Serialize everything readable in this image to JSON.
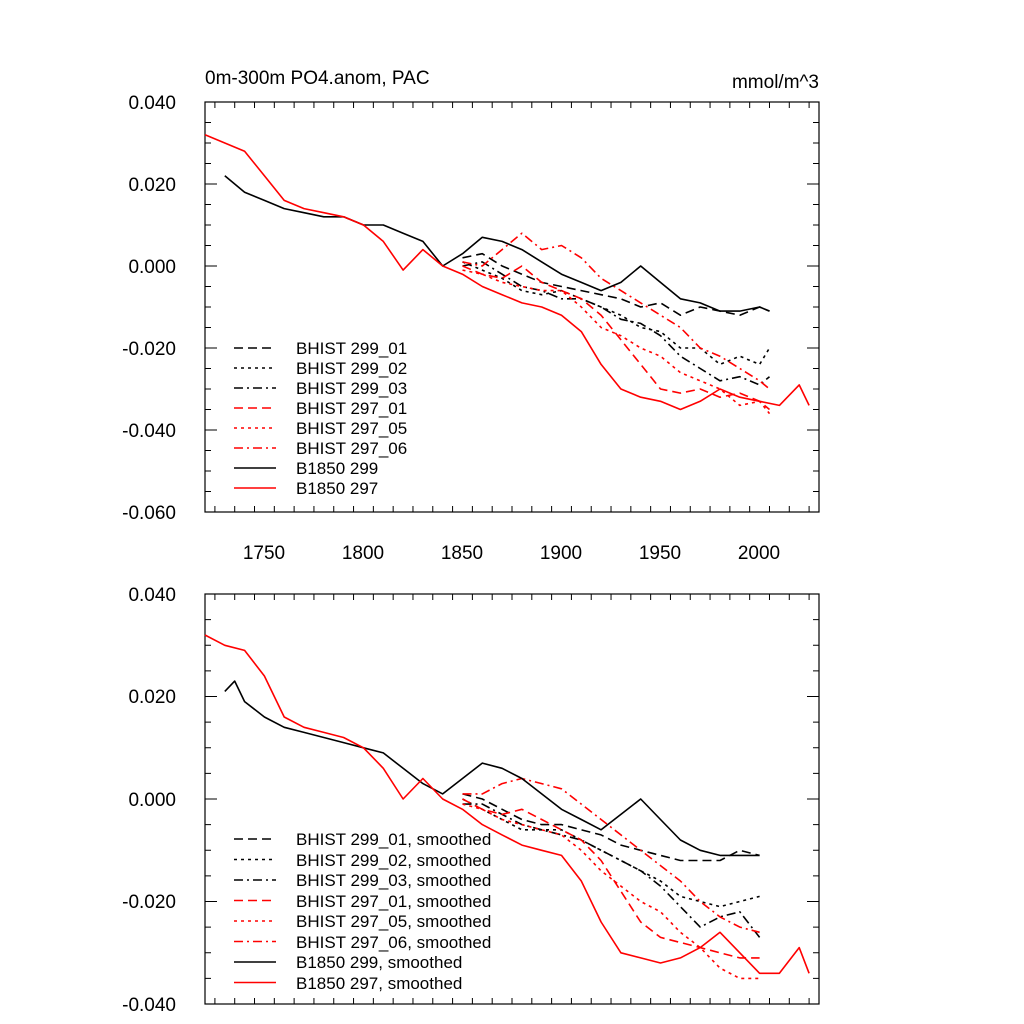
{
  "chart_data": [
    {
      "type": "line",
      "title": "0m-300m PO4.anom, PAC",
      "units": "mmol/m^3",
      "xlim": [
        1720,
        2030
      ],
      "ylim": [
        -0.06,
        0.04
      ],
      "xticks": [
        "1750",
        "1800",
        "1850",
        "1900",
        "1950",
        "2000"
      ],
      "yticks": [
        "0.040",
        "0.020",
        "0.000",
        "-0.020",
        "-0.040",
        "-0.060"
      ],
      "grid": false,
      "legend_position": "bottom-left",
      "series": [
        {
          "name": "BHIST 299_01",
          "color": "#000000",
          "dash": "dashed",
          "x": [
            1850,
            1860,
            1870,
            1880,
            1890,
            1900,
            1910,
            1920,
            1930,
            1940,
            1950,
            1960,
            1970,
            1980,
            1990,
            2000,
            2005
          ],
          "y": [
            0.002,
            0.003,
            0.0,
            -0.002,
            -0.004,
            -0.005,
            -0.006,
            -0.007,
            -0.008,
            -0.01,
            -0.009,
            -0.012,
            -0.01,
            -0.011,
            -0.012,
            -0.01,
            -0.011
          ]
        },
        {
          "name": "BHIST 299_02",
          "color": "#000000",
          "dash": "dotted",
          "x": [
            1850,
            1860,
            1870,
            1880,
            1890,
            1900,
            1910,
            1920,
            1930,
            1940,
            1950,
            1960,
            1970,
            1980,
            1990,
            2000,
            2005
          ],
          "y": [
            0.001,
            -0.001,
            -0.003,
            -0.006,
            -0.007,
            -0.006,
            -0.008,
            -0.01,
            -0.012,
            -0.015,
            -0.016,
            -0.02,
            -0.02,
            -0.024,
            -0.022,
            -0.024,
            -0.02
          ]
        },
        {
          "name": "BHIST 299_03",
          "color": "#000000",
          "dash": "dashdot",
          "x": [
            1850,
            1860,
            1870,
            1880,
            1890,
            1900,
            1910,
            1920,
            1930,
            1940,
            1950,
            1960,
            1970,
            1980,
            1990,
            2000,
            2005
          ],
          "y": [
            0.0,
            0.001,
            -0.002,
            -0.005,
            -0.006,
            -0.008,
            -0.008,
            -0.01,
            -0.013,
            -0.014,
            -0.017,
            -0.022,
            -0.025,
            -0.028,
            -0.027,
            -0.029,
            -0.027
          ]
        },
        {
          "name": "BHIST 297_01",
          "color": "#ff0000",
          "dash": "dashed",
          "x": [
            1850,
            1860,
            1870,
            1880,
            1890,
            1900,
            1910,
            1920,
            1930,
            1940,
            1950,
            1960,
            1970,
            1980,
            1990,
            2000,
            2005
          ],
          "y": [
            0.0,
            -0.002,
            -0.003,
            0.0,
            -0.004,
            -0.006,
            -0.008,
            -0.012,
            -0.018,
            -0.024,
            -0.03,
            -0.031,
            -0.03,
            -0.032,
            -0.031,
            -0.033,
            -0.035
          ]
        },
        {
          "name": "BHIST 297_05",
          "color": "#ff0000",
          "dash": "dotted",
          "x": [
            1850,
            1860,
            1870,
            1880,
            1890,
            1900,
            1910,
            1920,
            1930,
            1940,
            1950,
            1960,
            1970,
            1980,
            1990,
            2000,
            2005
          ],
          "y": [
            -0.001,
            -0.002,
            -0.004,
            -0.005,
            -0.006,
            -0.006,
            -0.01,
            -0.015,
            -0.017,
            -0.02,
            -0.022,
            -0.026,
            -0.028,
            -0.03,
            -0.034,
            -0.033,
            -0.036
          ]
        },
        {
          "name": "BHIST 297_06",
          "color": "#ff0000",
          "dash": "dashdot",
          "x": [
            1850,
            1860,
            1870,
            1880,
            1890,
            1900,
            1910,
            1920,
            1930,
            1940,
            1950,
            1960,
            1970,
            1980,
            1990,
            2000,
            2005
          ],
          "y": [
            0.001,
            0.0,
            0.004,
            0.008,
            0.004,
            0.005,
            0.002,
            -0.003,
            -0.006,
            -0.009,
            -0.012,
            -0.015,
            -0.02,
            -0.022,
            -0.025,
            -0.028,
            -0.03
          ]
        },
        {
          "name": "B1850 299",
          "color": "#000000",
          "dash": "solid",
          "x": [
            1730,
            1740,
            1750,
            1760,
            1770,
            1780,
            1790,
            1800,
            1810,
            1820,
            1830,
            1840,
            1850,
            1860,
            1870,
            1880,
            1890,
            1900,
            1910,
            1920,
            1930,
            1940,
            1950,
            1960,
            1970,
            1980,
            1990,
            2000,
            2005
          ],
          "y": [
            0.022,
            0.018,
            0.016,
            0.014,
            0.013,
            0.012,
            0.012,
            0.01,
            0.01,
            0.008,
            0.006,
            0.0,
            0.003,
            0.007,
            0.006,
            0.004,
            0.001,
            -0.002,
            -0.004,
            -0.006,
            -0.004,
            0.0,
            -0.004,
            -0.008,
            -0.009,
            -0.011,
            -0.011,
            -0.01,
            -0.011
          ]
        },
        {
          "name": "B1850 297",
          "color": "#ff0000",
          "dash": "solid",
          "x": [
            1720,
            1730,
            1740,
            1750,
            1760,
            1770,
            1780,
            1790,
            1800,
            1810,
            1820,
            1830,
            1840,
            1850,
            1860,
            1870,
            1880,
            1890,
            1900,
            1910,
            1920,
            1930,
            1940,
            1950,
            1960,
            1970,
            1980,
            1990,
            2000,
            2010,
            2020,
            2025
          ],
          "y": [
            0.032,
            0.03,
            0.028,
            0.022,
            0.016,
            0.014,
            0.013,
            0.012,
            0.01,
            0.006,
            -0.001,
            0.004,
            0.0,
            -0.002,
            -0.005,
            -0.007,
            -0.009,
            -0.01,
            -0.012,
            -0.016,
            -0.024,
            -0.03,
            -0.032,
            -0.033,
            -0.035,
            -0.033,
            -0.03,
            -0.032,
            -0.033,
            -0.034,
            -0.029,
            -0.034
          ]
        }
      ]
    },
    {
      "type": "line",
      "title": "",
      "xlim": [
        1720,
        2030
      ],
      "ylim": [
        -0.04,
        0.04
      ],
      "yticks": [
        "0.040",
        "0.020",
        "0.000",
        "-0.020",
        "-0.040"
      ],
      "grid": false,
      "legend_position": "bottom-left",
      "series": [
        {
          "name": "BHIST 299_01, smoothed",
          "color": "#000000",
          "dash": "dashed",
          "x": [
            1850,
            1860,
            1870,
            1880,
            1890,
            1900,
            1910,
            1920,
            1930,
            1940,
            1950,
            1960,
            1970,
            1980,
            1990,
            2000
          ],
          "y": [
            0.001,
            0.0,
            -0.002,
            -0.004,
            -0.005,
            -0.005,
            -0.006,
            -0.007,
            -0.009,
            -0.01,
            -0.011,
            -0.012,
            -0.012,
            -0.012,
            -0.01,
            -0.011
          ]
        },
        {
          "name": "BHIST 299_02, smoothed",
          "color": "#000000",
          "dash": "dotted",
          "x": [
            1850,
            1860,
            1870,
            1880,
            1890,
            1900,
            1910,
            1920,
            1930,
            1940,
            1950,
            1960,
            1970,
            1980,
            1990,
            2000
          ],
          "y": [
            0.0,
            -0.002,
            -0.004,
            -0.006,
            -0.006,
            -0.006,
            -0.008,
            -0.01,
            -0.012,
            -0.014,
            -0.016,
            -0.019,
            -0.02,
            -0.021,
            -0.02,
            -0.019
          ]
        },
        {
          "name": "BHIST 299_03, smoothed",
          "color": "#000000",
          "dash": "dashdot",
          "x": [
            1850,
            1860,
            1870,
            1880,
            1890,
            1900,
            1910,
            1920,
            1930,
            1940,
            1950,
            1960,
            1970,
            1980,
            1990,
            2000
          ],
          "y": [
            -0.001,
            -0.001,
            -0.003,
            -0.005,
            -0.006,
            -0.007,
            -0.008,
            -0.01,
            -0.012,
            -0.014,
            -0.017,
            -0.021,
            -0.025,
            -0.023,
            -0.022,
            -0.027
          ]
        },
        {
          "name": "BHIST 297_01, smoothed",
          "color": "#ff0000",
          "dash": "dashed",
          "x": [
            1850,
            1860,
            1870,
            1880,
            1890,
            1900,
            1910,
            1920,
            1930,
            1940,
            1950,
            1960,
            1970,
            1980,
            1990,
            2000
          ],
          "y": [
            0.0,
            -0.002,
            -0.003,
            -0.002,
            -0.004,
            -0.006,
            -0.008,
            -0.012,
            -0.018,
            -0.024,
            -0.027,
            -0.028,
            -0.029,
            -0.03,
            -0.031,
            -0.031
          ]
        },
        {
          "name": "BHIST 297_05, smoothed",
          "color": "#ff0000",
          "dash": "dotted",
          "x": [
            1850,
            1860,
            1870,
            1880,
            1890,
            1900,
            1910,
            1920,
            1930,
            1940,
            1950,
            1960,
            1970,
            1980,
            1990,
            2000
          ],
          "y": [
            -0.001,
            -0.002,
            -0.004,
            -0.005,
            -0.006,
            -0.007,
            -0.01,
            -0.014,
            -0.017,
            -0.02,
            -0.022,
            -0.026,
            -0.029,
            -0.033,
            -0.035,
            -0.035
          ]
        },
        {
          "name": "BHIST 297_06, smoothed",
          "color": "#ff0000",
          "dash": "dashdot",
          "x": [
            1850,
            1860,
            1870,
            1880,
            1890,
            1900,
            1910,
            1920,
            1930,
            1940,
            1950,
            1960,
            1970,
            1980,
            1990,
            2000
          ],
          "y": [
            0.001,
            0.001,
            0.003,
            0.004,
            0.003,
            0.002,
            -0.001,
            -0.004,
            -0.007,
            -0.01,
            -0.013,
            -0.016,
            -0.02,
            -0.023,
            -0.025,
            -0.026
          ]
        },
        {
          "name": "B1850 299, smoothed",
          "color": "#000000",
          "dash": "solid",
          "x": [
            1730,
            1735,
            1740,
            1750,
            1760,
            1770,
            1780,
            1790,
            1800,
            1810,
            1820,
            1830,
            1840,
            1850,
            1860,
            1870,
            1880,
            1890,
            1900,
            1910,
            1920,
            1930,
            1940,
            1950,
            1960,
            1970,
            1980,
            1990,
            2000
          ],
          "y": [
            0.021,
            0.023,
            0.019,
            0.016,
            0.014,
            0.013,
            0.012,
            0.011,
            0.01,
            0.009,
            0.006,
            0.003,
            0.001,
            0.004,
            0.007,
            0.006,
            0.004,
            0.001,
            -0.002,
            -0.004,
            -0.006,
            -0.003,
            0.0,
            -0.004,
            -0.008,
            -0.01,
            -0.011,
            -0.011,
            -0.011
          ]
        },
        {
          "name": "B1850 297, smoothed",
          "color": "#ff0000",
          "dash": "solid",
          "x": [
            1720,
            1730,
            1740,
            1750,
            1760,
            1770,
            1780,
            1790,
            1800,
            1810,
            1820,
            1830,
            1840,
            1850,
            1860,
            1870,
            1880,
            1890,
            1900,
            1910,
            1920,
            1930,
            1940,
            1950,
            1960,
            1970,
            1980,
            1990,
            2000,
            2010,
            2020,
            2025
          ],
          "y": [
            0.032,
            0.03,
            0.029,
            0.024,
            0.016,
            0.014,
            0.013,
            0.012,
            0.01,
            0.006,
            0.0,
            0.004,
            0.0,
            -0.002,
            -0.005,
            -0.007,
            -0.009,
            -0.01,
            -0.011,
            -0.016,
            -0.024,
            -0.03,
            -0.031,
            -0.032,
            -0.031,
            -0.029,
            -0.026,
            -0.03,
            -0.034,
            -0.034,
            -0.029,
            -0.034
          ]
        }
      ]
    }
  ]
}
